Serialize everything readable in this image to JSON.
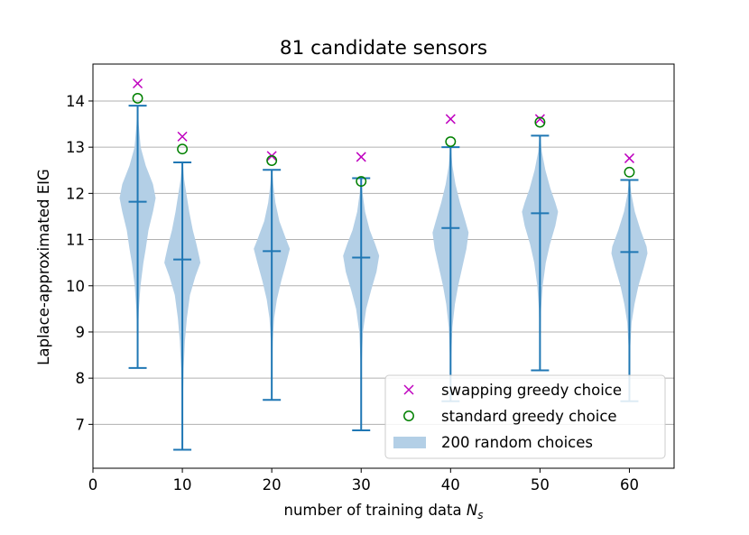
{
  "chart_data": {
    "type": "violin",
    "title": "81 candidate sensors",
    "xlabel_text": "number of training data ",
    "xlabel_symbol": "N",
    "xlabel_subscript": "s",
    "ylabel": "Laplace-approximated EIG",
    "xlim": [
      0,
      65
    ],
    "ylim": [
      6.05,
      14.8
    ],
    "xticks": [
      0,
      10,
      20,
      30,
      40,
      50,
      60
    ],
    "yticks": [
      7,
      8,
      9,
      10,
      11,
      12,
      13,
      14
    ],
    "grid": "horizontal",
    "legend_position": "lower-right",
    "legend": {
      "swap": "swapping greedy choice",
      "standard": "standard greedy choice",
      "random": "200 random choices"
    },
    "colors": {
      "violin_fill": "#b3cfe6",
      "violin_line": "#1f77b4",
      "swap_marker": "#bf00bf",
      "standard_marker": "#008000",
      "grid": "#b0b0b0"
    },
    "violins": [
      {
        "n": 5,
        "min": 8.22,
        "max": 13.9,
        "median": 11.82,
        "swap": 14.38,
        "standard": 14.06,
        "profile": [
          [
            13.9,
            0.02
          ],
          [
            13.5,
            0.06
          ],
          [
            13.0,
            0.17
          ],
          [
            12.6,
            0.45
          ],
          [
            12.2,
            0.85
          ],
          [
            11.9,
            1.0
          ],
          [
            11.6,
            0.85
          ],
          [
            11.2,
            0.6
          ],
          [
            10.8,
            0.45
          ],
          [
            10.5,
            0.32
          ],
          [
            10.0,
            0.16
          ],
          [
            9.5,
            0.07
          ],
          [
            9.0,
            0.03
          ],
          [
            8.22,
            0.01
          ]
        ]
      },
      {
        "n": 10,
        "min": 6.45,
        "max": 12.67,
        "median": 10.57,
        "swap": 13.23,
        "standard": 12.96,
        "profile": [
          [
            12.67,
            0.02
          ],
          [
            12.3,
            0.1
          ],
          [
            12.0,
            0.22
          ],
          [
            11.6,
            0.38
          ],
          [
            11.2,
            0.58
          ],
          [
            10.9,
            0.78
          ],
          [
            10.6,
            0.95
          ],
          [
            10.5,
            1.0
          ],
          [
            10.2,
            0.72
          ],
          [
            9.8,
            0.42
          ],
          [
            9.3,
            0.25
          ],
          [
            8.8,
            0.14
          ],
          [
            8.2,
            0.07
          ],
          [
            7.5,
            0.03
          ],
          [
            6.45,
            0.01
          ]
        ]
      },
      {
        "n": 20,
        "min": 7.53,
        "max": 12.51,
        "median": 10.75,
        "swap": 12.81,
        "standard": 12.71,
        "profile": [
          [
            12.51,
            0.02
          ],
          [
            12.2,
            0.08
          ],
          [
            11.8,
            0.2
          ],
          [
            11.4,
            0.42
          ],
          [
            11.0,
            0.8
          ],
          [
            10.8,
            1.0
          ],
          [
            10.5,
            0.8
          ],
          [
            10.1,
            0.52
          ],
          [
            9.7,
            0.28
          ],
          [
            9.3,
            0.13
          ],
          [
            8.8,
            0.05
          ],
          [
            8.2,
            0.02
          ],
          [
            7.53,
            0.01
          ]
        ]
      },
      {
        "n": 30,
        "min": 6.87,
        "max": 12.33,
        "median": 10.61,
        "swap": 12.79,
        "standard": 12.26,
        "profile": [
          [
            12.33,
            0.02
          ],
          [
            12.0,
            0.08
          ],
          [
            11.6,
            0.22
          ],
          [
            11.2,
            0.48
          ],
          [
            10.9,
            0.78
          ],
          [
            10.65,
            1.0
          ],
          [
            10.3,
            0.85
          ],
          [
            9.9,
            0.55
          ],
          [
            9.5,
            0.28
          ],
          [
            9.0,
            0.1
          ],
          [
            8.4,
            0.04
          ],
          [
            7.6,
            0.02
          ],
          [
            6.87,
            0.01
          ]
        ]
      },
      {
        "n": 40,
        "min": 7.5,
        "max": 13.0,
        "median": 11.25,
        "swap": 13.61,
        "standard": 13.12,
        "profile": [
          [
            13.0,
            0.02
          ],
          [
            12.6,
            0.1
          ],
          [
            12.2,
            0.27
          ],
          [
            11.8,
            0.52
          ],
          [
            11.4,
            0.82
          ],
          [
            11.15,
            1.0
          ],
          [
            10.8,
            0.88
          ],
          [
            10.4,
            0.65
          ],
          [
            10.0,
            0.42
          ],
          [
            9.6,
            0.24
          ],
          [
            9.1,
            0.1
          ],
          [
            8.5,
            0.04
          ],
          [
            7.5,
            0.01
          ]
        ]
      },
      {
        "n": 50,
        "min": 8.17,
        "max": 13.25,
        "median": 11.57,
        "swap": 13.61,
        "standard": 13.54,
        "profile": [
          [
            13.25,
            0.02
          ],
          [
            12.9,
            0.1
          ],
          [
            12.5,
            0.3
          ],
          [
            12.1,
            0.58
          ],
          [
            11.8,
            0.85
          ],
          [
            11.6,
            1.0
          ],
          [
            11.3,
            0.85
          ],
          [
            10.9,
            0.55
          ],
          [
            10.5,
            0.32
          ],
          [
            10.0,
            0.15
          ],
          [
            9.5,
            0.06
          ],
          [
            8.9,
            0.02
          ],
          [
            8.17,
            0.01
          ]
        ]
      },
      {
        "n": 60,
        "min": 7.5,
        "max": 12.29,
        "median": 10.73,
        "swap": 12.76,
        "standard": 12.46,
        "profile": [
          [
            12.29,
            0.02
          ],
          [
            12.0,
            0.1
          ],
          [
            11.6,
            0.3
          ],
          [
            11.2,
            0.62
          ],
          [
            10.85,
            0.95
          ],
          [
            10.7,
            1.0
          ],
          [
            10.4,
            0.8
          ],
          [
            10.0,
            0.5
          ],
          [
            9.6,
            0.28
          ],
          [
            9.2,
            0.12
          ],
          [
            8.7,
            0.05
          ],
          [
            8.1,
            0.02
          ],
          [
            7.5,
            0.01
          ]
        ]
      }
    ]
  }
}
